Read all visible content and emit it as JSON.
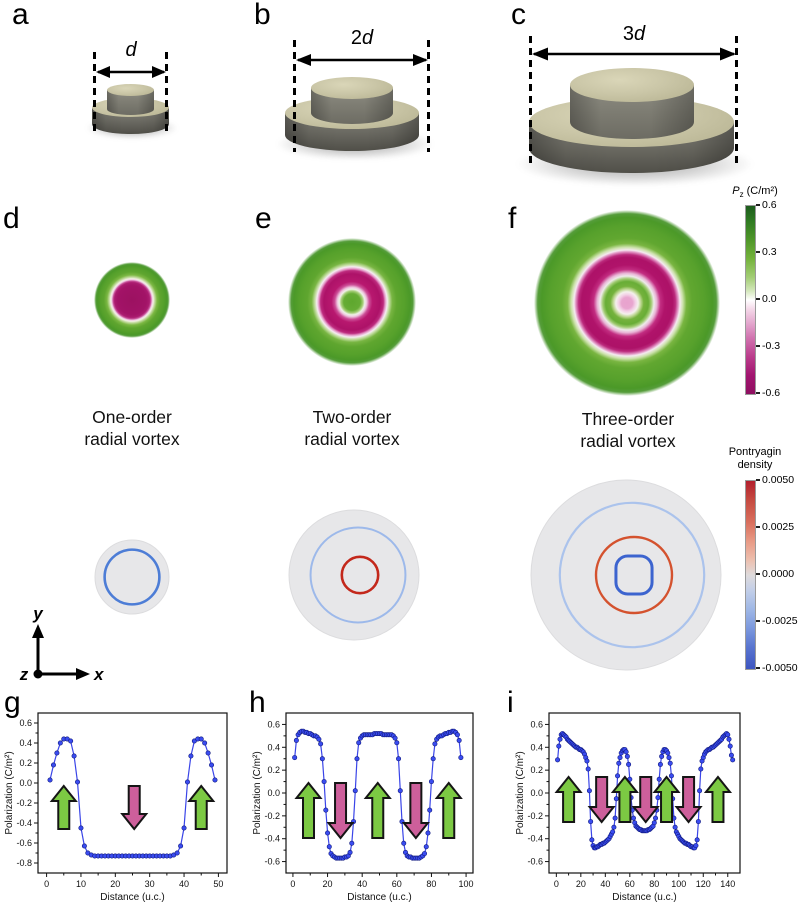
{
  "figure": {
    "panel_letters": [
      "a",
      "b",
      "c",
      "d",
      "e",
      "f",
      "g",
      "h",
      "i"
    ]
  },
  "panels_3d": [
    {
      "letter": "a",
      "dim_prefix": "",
      "dim_symbol": "d"
    },
    {
      "letter": "b",
      "dim_prefix": "2",
      "dim_symbol": "d"
    },
    {
      "letter": "c",
      "dim_prefix": "3",
      "dim_symbol": "d"
    }
  ],
  "vortex_maps": [
    {
      "letter": "d",
      "caption": [
        "One-order",
        "radial vortex"
      ],
      "rings_center_outward": [
        "magenta-core",
        "white",
        "green"
      ]
    },
    {
      "letter": "e",
      "caption": [
        "Two-order",
        "radial vortex"
      ],
      "rings_center_outward": [
        "green-core",
        "white",
        "magenta",
        "white",
        "green"
      ]
    },
    {
      "letter": "f",
      "caption": [
        "Three-order",
        "radial vortex"
      ],
      "rings_center_outward": [
        "light-pink-core",
        "white",
        "green",
        "white",
        "magenta",
        "white",
        "green"
      ]
    }
  ],
  "pontryagin_maps": [
    {
      "disk_color": "#e7e7e9",
      "rings": [
        {
          "shape": "circle",
          "rel_r": 0.74,
          "color": "#4d7dd6",
          "width": 2.6,
          "dx": 0
        }
      ]
    },
    {
      "disk_color": "#e7e7e9",
      "rings": [
        {
          "shape": "circle",
          "rel_r": 0.73,
          "color": "#9db9ea",
          "width": 2.0,
          "dx": 4
        },
        {
          "shape": "circle",
          "rel_r": 0.28,
          "color": "#c3281b",
          "width": 2.6,
          "dx": 6
        }
      ]
    },
    {
      "disk_color": "#e7e7e9",
      "rings": [
        {
          "shape": "circle",
          "rel_r": 0.76,
          "color": "#abc3ec",
          "width": 2.2,
          "dx": 6
        },
        {
          "shape": "circle",
          "rel_r": 0.4,
          "color": "#d4522e",
          "width": 2.4,
          "dx": 8
        },
        {
          "shape": "squircle",
          "rel_r": 0.19,
          "color": "#3c64cf",
          "width": 3.0,
          "dx": 8
        }
      ]
    }
  ],
  "colorbars": {
    "pz": {
      "title_symbol": "P",
      "title_sub": "z",
      "title_unit": " (C/m²)",
      "ticks": [
        "0.6",
        "0.3",
        "0.0",
        "-0.3",
        "-0.6"
      ],
      "top_color": "#1d5c1d",
      "mid_color": "#ffffff",
      "bottom_color": "#8e0f60"
    },
    "pontryagin": {
      "title_line1": "Pontryagin",
      "title_line2": "density",
      "ticks": [
        "0.0050",
        "0.0025",
        "0.0000",
        "-0.0025",
        "-0.0050"
      ],
      "top_color": "#b2202d",
      "mid_color": "#dfdbdc",
      "bottom_color": "#3d55c0"
    }
  },
  "axes_widget": {
    "x": "x",
    "y": "y",
    "z": "z"
  },
  "chart_data": [
    {
      "id": "g",
      "type": "line",
      "panel_letter": "g",
      "xlabel": "Distance (u.c.)",
      "ylabel": "Polarization (C/m²)",
      "xlim": [
        -2.5,
        52.5
      ],
      "ylim": [
        -0.9,
        0.7
      ],
      "xticks": [
        0,
        10,
        20,
        30,
        40,
        50
      ],
      "yticks": [
        0.6,
        0.4,
        0.2,
        0.0,
        -0.2,
        -0.4,
        -0.6,
        -0.8
      ],
      "x_start": 1,
      "x_step": 1,
      "y": [
        0.03,
        0.18,
        0.3,
        0.4,
        0.44,
        0.44,
        0.42,
        0.27,
        0.01,
        -0.45,
        -0.63,
        -0.7,
        -0.72,
        -0.73,
        -0.73,
        -0.73,
        -0.73,
        -0.73,
        -0.73,
        -0.73,
        -0.73,
        -0.73,
        -0.73,
        -0.73,
        -0.73,
        -0.73,
        -0.73,
        -0.73,
        -0.73,
        -0.73,
        -0.73,
        -0.73,
        -0.73,
        -0.73,
        -0.73,
        -0.73,
        -0.72,
        -0.7,
        -0.63,
        -0.45,
        0.01,
        0.27,
        0.42,
        0.44,
        0.44,
        0.4,
        0.3,
        0.18,
        0.03
      ],
      "arrows": [
        {
          "x": 5,
          "dir": "up"
        },
        {
          "x": 25.5,
          "dir": "down"
        },
        {
          "x": 45,
          "dir": "up"
        }
      ],
      "line_color": "#3a45e8",
      "marker_color": "#3a4cf0",
      "marker_edge": "#10197d",
      "arrow_colors": {
        "up": "#7cc943",
        "down": "#cd5f9b"
      }
    },
    {
      "id": "h",
      "type": "line",
      "panel_letter": "h",
      "xlabel": "Distance (u.c.)",
      "ylabel": "Polarization (C/m²)",
      "xlim": [
        -4,
        104
      ],
      "ylim": [
        -0.7,
        0.7
      ],
      "xticks": [
        0,
        20,
        40,
        60,
        80,
        100
      ],
      "yticks": [
        0.6,
        0.4,
        0.2,
        0.0,
        -0.2,
        -0.4,
        -0.6
      ],
      "x_start": 1,
      "x_step": 1,
      "y": [
        0.31,
        0.46,
        0.51,
        0.53,
        0.54,
        0.54,
        0.53,
        0.53,
        0.52,
        0.52,
        0.51,
        0.5,
        0.5,
        0.49,
        0.47,
        0.43,
        0.3,
        0.1,
        -0.15,
        -0.35,
        -0.47,
        -0.53,
        -0.55,
        -0.56,
        -0.57,
        -0.57,
        -0.57,
        -0.57,
        -0.57,
        -0.56,
        -0.56,
        -0.55,
        -0.52,
        -0.44,
        -0.25,
        0.02,
        0.3,
        0.44,
        0.48,
        0.5,
        0.51,
        0.51,
        0.51,
        0.51,
        0.51,
        0.51,
        0.52,
        0.52,
        0.52,
        0.52,
        0.52,
        0.51,
        0.51,
        0.51,
        0.51,
        0.51,
        0.51,
        0.5,
        0.48,
        0.44,
        0.3,
        0.02,
        -0.25,
        -0.44,
        -0.52,
        -0.55,
        -0.56,
        -0.56,
        -0.57,
        -0.57,
        -0.57,
        -0.57,
        -0.57,
        -0.56,
        -0.55,
        -0.53,
        -0.47,
        -0.35,
        -0.15,
        0.1,
        0.3,
        0.43,
        0.47,
        0.49,
        0.5,
        0.5,
        0.51,
        0.52,
        0.52,
        0.53,
        0.53,
        0.54,
        0.54,
        0.53,
        0.51,
        0.46,
        0.31
      ],
      "arrows": [
        {
          "x": 9,
          "dir": "up"
        },
        {
          "x": 27.5,
          "dir": "down"
        },
        {
          "x": 49,
          "dir": "up"
        },
        {
          "x": 71,
          "dir": "down"
        },
        {
          "x": 90,
          "dir": "up"
        }
      ],
      "line_color": "#3a45e8",
      "marker_color": "#3a4cf0",
      "marker_edge": "#10197d",
      "arrow_colors": {
        "up": "#7cc943",
        "down": "#cd5f9b"
      }
    },
    {
      "id": "i",
      "type": "line",
      "panel_letter": "i",
      "xlabel": "Distance (u.c.)",
      "ylabel": "Polarization (C/m²)",
      "xlim": [
        -6,
        150
      ],
      "ylim": [
        -0.7,
        0.7
      ],
      "xticks": [
        0,
        20,
        40,
        60,
        80,
        100,
        120,
        140
      ],
      "yticks": [
        0.6,
        0.4,
        0.2,
        0.0,
        -0.2,
        -0.4,
        -0.6
      ],
      "x_start": 1,
      "x_step": 1,
      "y": [
        0.29,
        0.41,
        0.47,
        0.51,
        0.52,
        0.51,
        0.5,
        0.49,
        0.47,
        0.46,
        0.45,
        0.44,
        0.43,
        0.42,
        0.41,
        0.4,
        0.4,
        0.39,
        0.38,
        0.38,
        0.37,
        0.36,
        0.34,
        0.31,
        0.28,
        0.21,
        0.02,
        -0.25,
        -0.41,
        -0.46,
        -0.48,
        -0.48,
        -0.47,
        -0.47,
        -0.46,
        -0.45,
        -0.45,
        -0.44,
        -0.44,
        -0.43,
        -0.42,
        -0.41,
        -0.4,
        -0.38,
        -0.36,
        -0.34,
        -0.3,
        -0.22,
        -0.05,
        0.15,
        0.26,
        0.31,
        0.35,
        0.37,
        0.38,
        0.38,
        0.36,
        0.32,
        0.25,
        0.12,
        -0.04,
        -0.15,
        -0.22,
        -0.26,
        -0.29,
        -0.3,
        -0.31,
        -0.32,
        -0.32,
        -0.33,
        -0.33,
        -0.33,
        -0.33,
        -0.33,
        -0.32,
        -0.32,
        -0.31,
        -0.3,
        -0.29,
        -0.26,
        -0.22,
        -0.15,
        -0.04,
        0.12,
        0.25,
        0.32,
        0.36,
        0.38,
        0.38,
        0.37,
        0.35,
        0.31,
        0.26,
        0.15,
        -0.05,
        -0.22,
        -0.3,
        -0.34,
        -0.36,
        -0.38,
        -0.4,
        -0.41,
        -0.42,
        -0.43,
        -0.44,
        -0.44,
        -0.45,
        -0.45,
        -0.46,
        -0.47,
        -0.47,
        -0.48,
        -0.48,
        -0.46,
        -0.41,
        -0.25,
        0.02,
        0.21,
        0.28,
        0.31,
        0.34,
        0.36,
        0.37,
        0.38,
        0.38,
        0.39,
        0.4,
        0.4,
        0.41,
        0.42,
        0.43,
        0.44,
        0.45,
        0.46,
        0.47,
        0.49,
        0.5,
        0.51,
        0.52,
        0.51,
        0.47,
        0.41,
        0.33,
        0.29
      ],
      "arrows": [
        {
          "x": 10,
          "dir": "up"
        },
        {
          "x": 37,
          "dir": "down"
        },
        {
          "x": 56,
          "dir": "up"
        },
        {
          "x": 73,
          "dir": "down"
        },
        {
          "x": 90,
          "dir": "up"
        },
        {
          "x": 108,
          "dir": "down"
        },
        {
          "x": 132,
          "dir": "up"
        }
      ],
      "line_color": "#3a45e8",
      "marker_color": "#3a4cf0",
      "marker_edge": "#10197d",
      "arrow_colors": {
        "up": "#7cc943",
        "down": "#cd5f9b"
      }
    }
  ]
}
